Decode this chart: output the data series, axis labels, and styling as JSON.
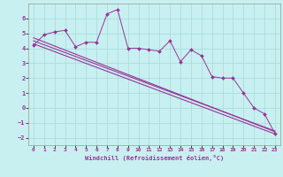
{
  "title": "",
  "xlabel": "Windchill (Refroidissement éolien,°C)",
  "ylabel": "",
  "bg_color": "#c8f0f0",
  "line_color": "#993399",
  "grid_color": "#aadddd",
  "xlim": [
    -0.5,
    23.5
  ],
  "ylim": [
    -2.5,
    7.0
  ],
  "xticks": [
    0,
    1,
    2,
    3,
    4,
    5,
    6,
    7,
    8,
    9,
    10,
    11,
    12,
    13,
    14,
    15,
    16,
    17,
    18,
    19,
    20,
    21,
    22,
    23
  ],
  "yticks": [
    -2,
    -1,
    0,
    1,
    2,
    3,
    4,
    5,
    6
  ],
  "jagged_x": [
    0,
    1,
    2,
    3,
    4,
    5,
    6,
    7,
    8,
    9,
    10,
    11,
    12,
    13,
    14,
    15,
    16,
    17,
    18,
    19,
    20,
    21,
    22,
    23
  ],
  "jagged_y": [
    4.2,
    4.9,
    5.1,
    5.2,
    4.1,
    4.4,
    4.4,
    6.3,
    6.6,
    4.0,
    4.0,
    3.9,
    3.8,
    4.5,
    3.1,
    3.9,
    3.5,
    2.1,
    2.0,
    2.0,
    1.0,
    0.0,
    -0.4,
    -1.7
  ],
  "line1_x": [
    0,
    23
  ],
  "line1_y": [
    4.7,
    -1.6
  ],
  "line2_x": [
    0,
    23
  ],
  "line2_y": [
    4.5,
    -1.55
  ],
  "line3_x": [
    0,
    23
  ],
  "line3_y": [
    4.3,
    -1.75
  ]
}
